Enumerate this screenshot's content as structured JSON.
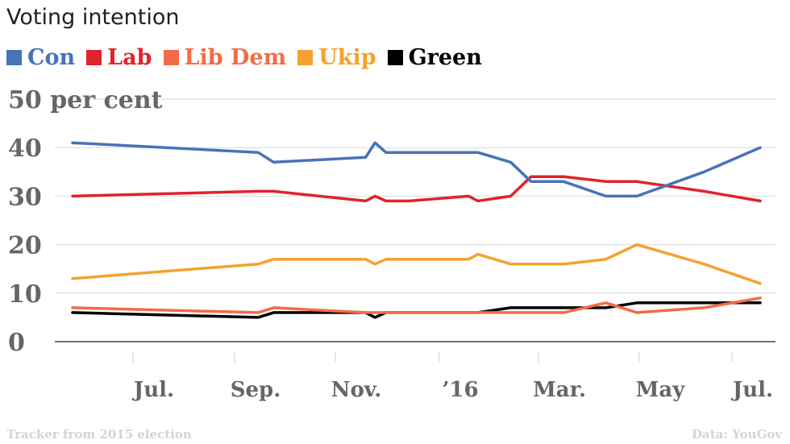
{
  "chart_data": {
    "type": "line",
    "title": "Voting intention",
    "ylabel_top": "50 per cent",
    "ylim": [
      0,
      50
    ],
    "yticks": [
      0,
      10,
      20,
      30,
      40
    ],
    "xticks": [
      "Jul.",
      "Sep.",
      "Nov.",
      "'16",
      "Mar.",
      "May",
      "Jul."
    ],
    "grid": true,
    "legend_position": "top-left",
    "x_dates": [
      "2015-05-08",
      "2015-09-04",
      "2015-09-14",
      "2015-11-12",
      "2015-11-18",
      "2015-11-25",
      "2015-12-10",
      "2016-01-17",
      "2016-01-23",
      "2016-02-13",
      "2016-02-26",
      "2016-03-18",
      "2016-04-14",
      "2016-05-04",
      "2016-06-16",
      "2016-07-22"
    ],
    "series": [
      {
        "name": "Con",
        "color": "#4773b7",
        "values": [
          41,
          39,
          37,
          38,
          41,
          39,
          39,
          39,
          39,
          37,
          33,
          33,
          30,
          30,
          35,
          40
        ]
      },
      {
        "name": "Lab",
        "color": "#e0232d",
        "values": [
          30,
          31,
          31,
          29,
          30,
          29,
          29,
          30,
          29,
          30,
          34,
          34,
          33,
          33,
          31,
          29
        ]
      },
      {
        "name": "Lib Dem",
        "color": "#f26c47",
        "values": [
          7,
          6,
          7,
          6,
          6,
          6,
          6,
          6,
          6,
          6,
          6,
          6,
          8,
          6,
          7,
          9
        ]
      },
      {
        "name": "Ukip",
        "color": "#f4a22d",
        "values": [
          13,
          16,
          17,
          17,
          16,
          17,
          17,
          17,
          18,
          16,
          16,
          16,
          17,
          20,
          16,
          12
        ]
      },
      {
        "name": "Green",
        "color": "#000000",
        "values": [
          6,
          5,
          6,
          6,
          5,
          6,
          6,
          6,
          6,
          7,
          7,
          7,
          7,
          8,
          8,
          8
        ]
      }
    ]
  },
  "footer": {
    "source_note": "Tracker from 2015 election",
    "credit": "Data: YouGov"
  }
}
